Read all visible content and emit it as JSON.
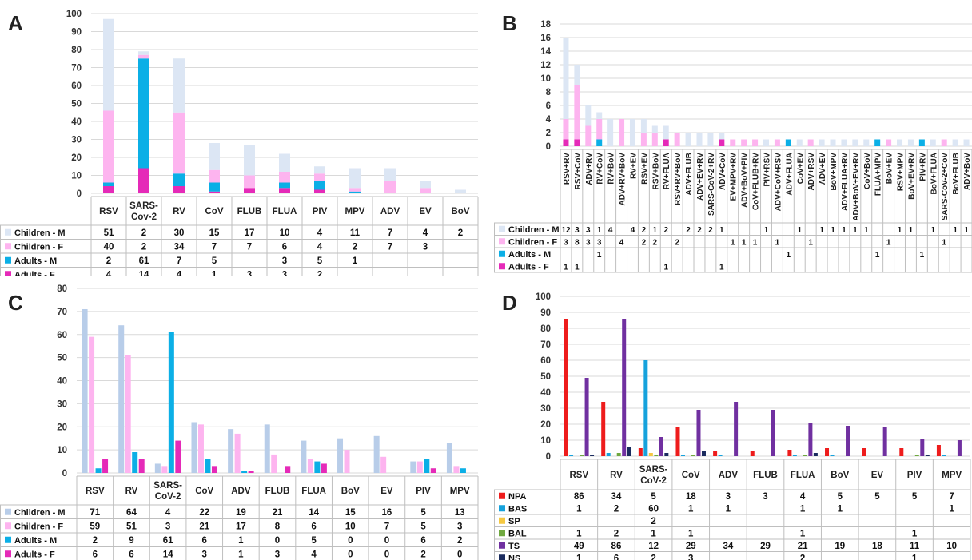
{
  "chart_data": [
    {
      "panel": "A",
      "type": "bar",
      "stacked": true,
      "yticks": [
        0,
        10,
        20,
        30,
        40,
        50,
        60,
        70,
        80,
        90,
        100
      ],
      "ylim": [
        0,
        100
      ],
      "grid": true,
      "legend": "table-below",
      "categories": [
        "RSV",
        "SARS-CoV-2",
        "RV",
        "CoV",
        "FLUB",
        "FLUA",
        "PIV",
        "MPV",
        "ADV",
        "EV",
        "BoV"
      ],
      "category_labels": [
        [
          "RSV"
        ],
        [
          "SARS-",
          "Cov-2"
        ],
        [
          "RV"
        ],
        [
          "CoV"
        ],
        [
          "FLUB"
        ],
        [
          "FLUA"
        ],
        [
          "PIV"
        ],
        [
          "MPV"
        ],
        [
          "ADV"
        ],
        [
          "EV"
        ],
        [
          "BoV"
        ]
      ],
      "series": [
        {
          "name": "Children - M",
          "color": "#dce6f4",
          "values": [
            51,
            2,
            30,
            15,
            17,
            10,
            4,
            11,
            7,
            4,
            2
          ]
        },
        {
          "name": "Children - F",
          "color": "#fdb4ef",
          "values": [
            40,
            2,
            34,
            7,
            7,
            6,
            4,
            2,
            7,
            3,
            null
          ]
        },
        {
          "name": "Adults - M",
          "color": "#0bafe6",
          "values": [
            2,
            61,
            7,
            5,
            null,
            3,
            5,
            1,
            null,
            null,
            null
          ]
        },
        {
          "name": "Adults - F",
          "color": "#e52ab8",
          "values": [
            4,
            14,
            4,
            1,
            3,
            3,
            2,
            null,
            null,
            null,
            null
          ]
        }
      ]
    },
    {
      "panel": "B",
      "type": "bar",
      "stacked": true,
      "yticks": [
        0,
        2,
        4,
        6,
        8,
        10,
        12,
        14,
        16,
        18
      ],
      "ylim": [
        0,
        18
      ],
      "grid": true,
      "legend": "table-below",
      "categories": [
        "RSV+RV",
        "RSV+CoV",
        "ADV+RV",
        "RV+CoV",
        "RV+BoV",
        "ADV+RV+BoV",
        "RV+EV",
        "RSV+EV",
        "RSV+BoV",
        "RV+FLUA",
        "RSV+RV+BoV",
        "ADV+FLUB",
        "ADV+EV+RV",
        "SARS-CoV-2+RV",
        "ADV+CoV",
        "EV+MPV+RV",
        "ADV+BoV+PIV",
        "CoV+FLUB+RV",
        "PIV+RSV",
        "ADV+CoV+RSV",
        "ADV+FLUA",
        "CoV+EV",
        "ADV+RSV",
        "ADV+EV",
        "BoV+MPV",
        "ADV+FLUA+RV",
        "ADV+BoV+EV+RV",
        "CoV+BoV",
        "FLUA+MPV",
        "BoV+EV",
        "RSV+MPV",
        "BoV+EV+RV",
        "PIV+RV",
        "BoV+FLUA",
        "SARS-CoV-2+CoV",
        "BoV+FLUB",
        "ADV+BoV"
      ],
      "series": [
        {
          "name": "Children - M",
          "color": "#dce6f4",
          "values": [
            12,
            3,
            3,
            1,
            4,
            null,
            4,
            2,
            1,
            2,
            null,
            2,
            2,
            2,
            1,
            null,
            null,
            null,
            1,
            null,
            null,
            1,
            null,
            1,
            1,
            1,
            1,
            1,
            null,
            null,
            1,
            1,
            null,
            1,
            null,
            1,
            1
          ]
        },
        {
          "name": "Children - F",
          "color": "#fdb4ef",
          "values": [
            3,
            8,
            3,
            3,
            null,
            4,
            null,
            2,
            2,
            null,
            2,
            null,
            null,
            null,
            null,
            1,
            1,
            1,
            null,
            1,
            null,
            null,
            1,
            null,
            null,
            null,
            null,
            null,
            null,
            1,
            null,
            null,
            null,
            null,
            1,
            null,
            null
          ]
        },
        {
          "name": "Adults - M",
          "color": "#0bafe6",
          "values": [
            null,
            null,
            null,
            1,
            null,
            null,
            null,
            null,
            null,
            null,
            null,
            null,
            null,
            null,
            null,
            null,
            null,
            null,
            null,
            null,
            1,
            null,
            null,
            null,
            null,
            null,
            null,
            null,
            1,
            null,
            null,
            null,
            1,
            null,
            null,
            null,
            null
          ]
        },
        {
          "name": "Adults - F",
          "color": "#e52ab8",
          "values": [
            1,
            1,
            null,
            null,
            null,
            null,
            null,
            null,
            null,
            1,
            null,
            null,
            null,
            null,
            1,
            null,
            null,
            null,
            null,
            null,
            null,
            null,
            null,
            null,
            null,
            null,
            null,
            null,
            null,
            null,
            null,
            null,
            null,
            null,
            null,
            null,
            null
          ]
        }
      ]
    },
    {
      "panel": "C",
      "type": "bar",
      "stacked": false,
      "yticks": [
        0,
        10,
        20,
        30,
        40,
        50,
        60,
        70,
        80
      ],
      "ylim": [
        0,
        80
      ],
      "grid": true,
      "legend": "table-below",
      "categories": [
        "RSV",
        "RV",
        "SARS-CoV-2",
        "CoV",
        "ADV",
        "FLUB",
        "FLUA",
        "BoV",
        "EV",
        "PIV",
        "MPV"
      ],
      "category_labels": [
        [
          "RSV"
        ],
        [
          "RV"
        ],
        [
          "SARS-",
          "CoV-2"
        ],
        [
          "CoV"
        ],
        [
          "ADV"
        ],
        [
          "FLUB"
        ],
        [
          "FLUA"
        ],
        [
          "BoV"
        ],
        [
          "EV"
        ],
        [
          "PIV"
        ],
        [
          "MPV"
        ]
      ],
      "series": [
        {
          "name": "Children - M",
          "color": "#b8cde9",
          "values": [
            71,
            64,
            4,
            22,
            19,
            21,
            14,
            15,
            16,
            5,
            13
          ]
        },
        {
          "name": "Children - F",
          "color": "#fdb4ef",
          "values": [
            59,
            51,
            3,
            21,
            17,
            8,
            6,
            10,
            7,
            5,
            3
          ]
        },
        {
          "name": "Adults - M",
          "color": "#0bafe6",
          "values": [
            2,
            9,
            61,
            6,
            1,
            0,
            5,
            0,
            0,
            6,
            2
          ]
        },
        {
          "name": "Adults - F",
          "color": "#e52ab8",
          "values": [
            6,
            6,
            14,
            3,
            1,
            3,
            4,
            0,
            0,
            2,
            0
          ]
        }
      ]
    },
    {
      "panel": "D",
      "type": "bar",
      "stacked": false,
      "yticks": [
        0,
        10,
        20,
        30,
        40,
        50,
        60,
        70,
        80,
        90,
        100
      ],
      "ylim": [
        0,
        100
      ],
      "grid": true,
      "legend": "table-below",
      "categories": [
        "RSV",
        "RV",
        "SARS-CoV-2",
        "CoV",
        "ADV",
        "FLUB",
        "FLUA",
        "BoV",
        "EV",
        "PIV",
        "MPV"
      ],
      "category_labels": [
        [
          "RSV"
        ],
        [
          "RV"
        ],
        [
          "SARS-",
          "CoV-2"
        ],
        [
          "CoV"
        ],
        [
          "ADV"
        ],
        [
          "FLUB"
        ],
        [
          "FLUA"
        ],
        [
          "BoV"
        ],
        [
          "EV"
        ],
        [
          "PIV"
        ],
        [
          "MPV"
        ]
      ],
      "series": [
        {
          "name": "NPA",
          "color": "#ee1c1c",
          "values": [
            86,
            34,
            5,
            18,
            3,
            3,
            4,
            5,
            5,
            5,
            7
          ]
        },
        {
          "name": "BAS",
          "color": "#16a2dc",
          "values": [
            1,
            2,
            60,
            1,
            1,
            null,
            1,
            1,
            null,
            null,
            1
          ]
        },
        {
          "name": "SP",
          "color": "#f5c842",
          "values": [
            null,
            null,
            2,
            null,
            null,
            null,
            null,
            null,
            null,
            null,
            null
          ]
        },
        {
          "name": "BAL",
          "color": "#6fa83f",
          "values": [
            1,
            2,
            1,
            1,
            null,
            null,
            1,
            null,
            null,
            1,
            null
          ]
        },
        {
          "name": "TS",
          "color": "#7030a0",
          "values": [
            49,
            86,
            12,
            29,
            34,
            29,
            21,
            19,
            18,
            11,
            10
          ]
        },
        {
          "name": "NS",
          "color": "#1a2b5e",
          "values": [
            1,
            6,
            2,
            3,
            null,
            null,
            2,
            null,
            null,
            1,
            null
          ]
        }
      ]
    }
  ]
}
